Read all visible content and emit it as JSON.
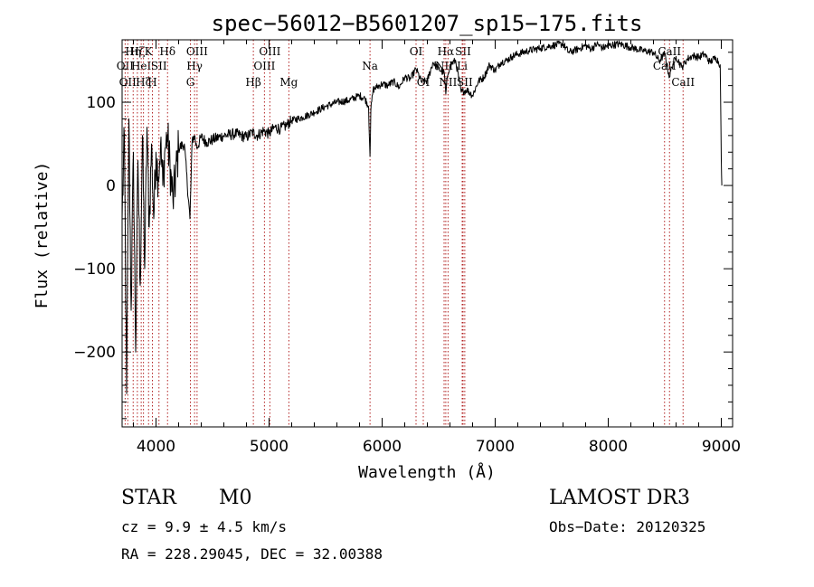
{
  "chart_data": {
    "type": "line",
    "title": "spec−56012−B5601207_sp15−175.fits",
    "xlabel": "Wavelength (Å)",
    "ylabel": "Flux (relative)",
    "xlim": [
      3700,
      9100
    ],
    "ylim": [
      -290,
      175
    ],
    "x_ticks": [
      4000,
      5000,
      6000,
      7000,
      8000,
      9000
    ],
    "x_tick_labels": [
      "4000",
      "5000",
      "6000",
      "7000",
      "8000",
      "9000"
    ],
    "y_ticks": [
      -200,
      -100,
      0,
      100
    ],
    "y_tick_labels": [
      "−200",
      "−100",
      "0",
      "100"
    ],
    "series": [
      {
        "name": "flux",
        "x": [
          3700,
          3720,
          3740,
          3760,
          3780,
          3800,
          3820,
          3840,
          3860,
          3880,
          3900,
          3920,
          3940,
          3960,
          3980,
          4000,
          4020,
          4040,
          4060,
          4080,
          4100,
          4150,
          4200,
          4250,
          4300,
          4320,
          4340,
          4360,
          4400,
          4450,
          4500,
          4600,
          4700,
          4800,
          4850,
          4900,
          4950,
          5000,
          5050,
          5100,
          5150,
          5200,
          5300,
          5400,
          5500,
          5600,
          5700,
          5800,
          5850,
          5880,
          5893,
          5900,
          5920,
          5950,
          6000,
          6050,
          6100,
          6150,
          6200,
          6250,
          6300,
          6350,
          6400,
          6450,
          6500,
          6550,
          6563,
          6580,
          6600,
          6650,
          6700,
          6750,
          6800,
          6850,
          6900,
          6950,
          7000,
          7050,
          7100,
          7150,
          7200,
          7300,
          7400,
          7500,
          7600,
          7650,
          7700,
          7750,
          7800,
          7850,
          7900,
          7950,
          8000,
          8100,
          8200,
          8300,
          8400,
          8450,
          8500,
          8542,
          8560,
          8600,
          8650,
          8700,
          8750,
          8800,
          8850,
          8900,
          8950,
          8990,
          9000,
          9005
        ],
        "y": [
          -40,
          60,
          -250,
          80,
          -150,
          40,
          -200,
          30,
          -120,
          60,
          -100,
          70,
          -50,
          50,
          -40,
          40,
          10,
          50,
          0,
          45,
          60,
          -20,
          45,
          50,
          -40,
          55,
          60,
          45,
          58,
          52,
          55,
          60,
          62,
          58,
          64,
          60,
          66,
          62,
          70,
          68,
          72,
          78,
          82,
          88,
          95,
          100,
          102,
          108,
          104,
          95,
          35,
          90,
          115,
          118,
          122,
          120,
          125,
          118,
          130,
          128,
          140,
          124,
          126,
          148,
          140,
          135,
          110,
          132,
          145,
          150,
          112,
          115,
          108,
          125,
          130,
          145,
          138,
          148,
          150,
          155,
          158,
          162,
          165,
          168,
          170,
          160,
          162,
          165,
          168,
          164,
          170,
          165,
          168,
          170,
          166,
          162,
          160,
          150,
          158,
          130,
          142,
          155,
          142,
          152,
          156,
          154,
          158,
          148,
          154,
          145,
          30,
          0
        ]
      }
    ],
    "lines": [
      {
        "wave": 3727,
        "label": "OII",
        "row": 2
      },
      {
        "wave": 3750,
        "label": "OII",
        "row": 3
      },
      {
        "wave": 3798,
        "label": "Hη",
        "row": 1
      },
      {
        "wave": 3835,
        "label": "Hζ",
        "row": 1
      },
      {
        "wave": 3869,
        "label": "HeI",
        "row": 2
      },
      {
        "wave": 3889,
        "label": "Hζ",
        "row": 3
      },
      {
        "wave": 3934,
        "label": "K",
        "row": 1
      },
      {
        "wave": 3968,
        "label": "H",
        "row": 3
      },
      {
        "wave": 4026,
        "label": "SII",
        "row": 2
      },
      {
        "wave": 4102,
        "label": "Hδ",
        "row": 1
      },
      {
        "wave": 4304,
        "label": "G",
        "row": 3
      },
      {
        "wave": 4341,
        "label": "Hγ",
        "row": 2
      },
      {
        "wave": 4363,
        "label": "OIII",
        "row": 1
      },
      {
        "wave": 4861,
        "label": "Hβ",
        "row": 3
      },
      {
        "wave": 4959,
        "label": "OIII",
        "row": 2
      },
      {
        "wave": 5007,
        "label": "OIII",
        "row": 1
      },
      {
        "wave": 5175,
        "label": "Mg",
        "row": 3
      },
      {
        "wave": 5893,
        "label": "Na",
        "row": 2
      },
      {
        "wave": 6300,
        "label": "OI",
        "row": 1
      },
      {
        "wave": 6364,
        "label": "OI",
        "row": 3
      },
      {
        "wave": 6548,
        "label": "NII",
        "row": 2
      },
      {
        "wave": 6563,
        "label": "Hα",
        "row": 1
      },
      {
        "wave": 6583,
        "label": "NII",
        "row": 3
      },
      {
        "wave": 6708,
        "label": "Li",
        "row": 2
      },
      {
        "wave": 6716,
        "label": "SII",
        "row": 1
      },
      {
        "wave": 6731,
        "label": "SII",
        "row": 3
      },
      {
        "wave": 8498,
        "label": "CaII",
        "row": 2
      },
      {
        "wave": 8542,
        "label": "CaII",
        "row": 1
      },
      {
        "wave": 8662,
        "label": "CaII",
        "row": 3
      }
    ]
  },
  "info": {
    "object_class": "STAR",
    "subclass": "M0",
    "survey": "LAMOST DR3",
    "cz": "cz = 9.9 ± 4.5 km/s",
    "obs_date": "Obs−Date: 20120325",
    "radec": "RA = 228.29045, DEC =  32.00388"
  }
}
